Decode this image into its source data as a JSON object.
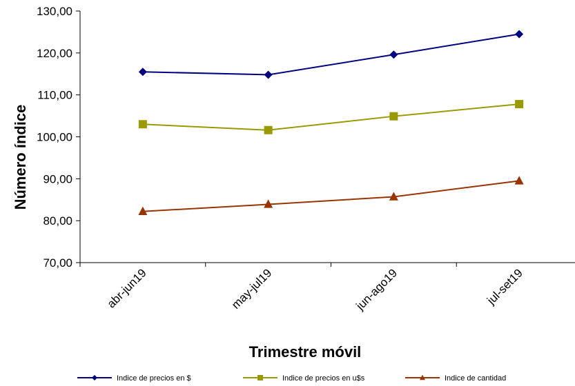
{
  "chart_data": {
    "type": "line",
    "categories": [
      "abr-jun19",
      "may-jul19",
      "jun-ago19",
      "jul-set19"
    ],
    "series": [
      {
        "name": "Indice de precios en $",
        "values": [
          115.5,
          114.8,
          119.6,
          124.5
        ],
        "color": "#000080",
        "marker": "diamond"
      },
      {
        "name": "Indice de precios en u$s",
        "values": [
          103.0,
          101.6,
          104.9,
          107.8
        ],
        "color": "#999900",
        "marker": "square"
      },
      {
        "name": "Indice de cantidad",
        "values": [
          82.2,
          83.9,
          85.7,
          89.5
        ],
        "color": "#993300",
        "marker": "triangle"
      }
    ],
    "xlabel": "Trimestre móvil",
    "ylabel": "Número índice",
    "ylim": [
      70,
      130
    ],
    "yticks": [
      "70,00",
      "80,00",
      "90,00",
      "100,00",
      "110,00",
      "120,00",
      "130,00"
    ],
    "grid": false,
    "legend_position": "bottom"
  }
}
